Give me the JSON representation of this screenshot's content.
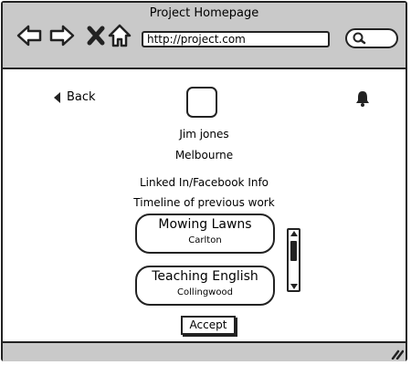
{
  "window": {
    "title": "Project Homepage"
  },
  "browser": {
    "url": "http://project.com",
    "icons": [
      "back-arrow-icon",
      "forward-arrow-icon",
      "close-icon",
      "home-icon",
      "search-icon"
    ]
  },
  "profile": {
    "back_label": "Back",
    "name": "Jim jones",
    "location": "Melbourne",
    "social_info": "Linked In/Facebook Info",
    "timeline_label": "Timeline of previous work"
  },
  "jobs": [
    {
      "title": "Mowing Lawns",
      "location": "Carlton"
    },
    {
      "title": "Teaching English",
      "location": "Collingwood"
    }
  ],
  "actions": {
    "accept_label": "Accept"
  },
  "colors": {
    "chrome": "#c9c9c9",
    "stroke": "#222222",
    "background": "#ffffff"
  }
}
